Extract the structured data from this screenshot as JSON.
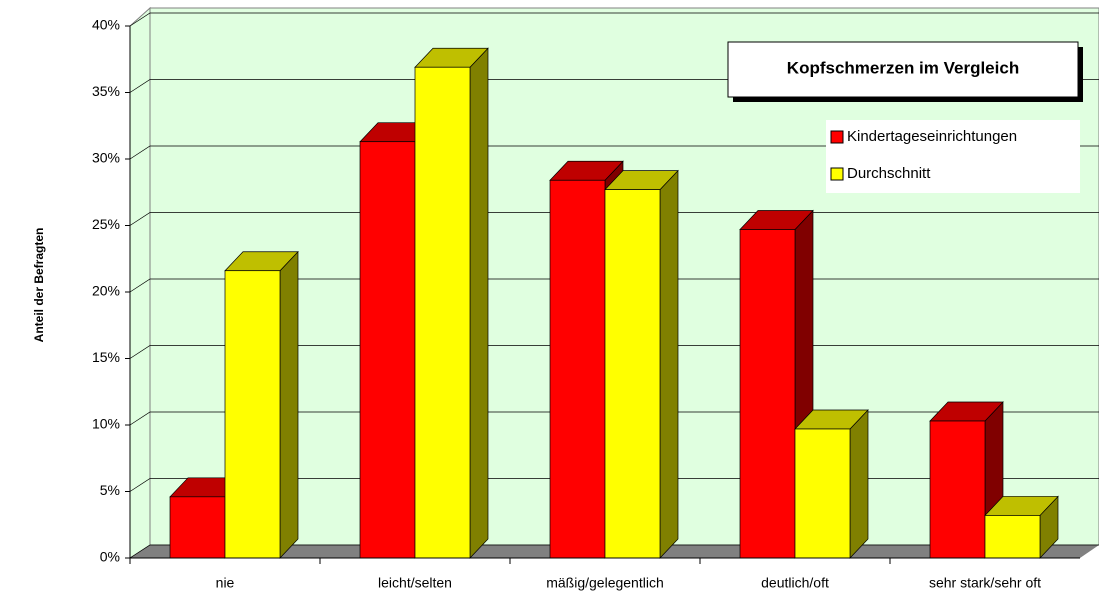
{
  "chart_data": {
    "type": "bar3d",
    "title": "Kopfschmerzen im Vergleich",
    "y_label": "Anteil der Befragten",
    "categories": [
      "nie",
      "leicht/selten",
      "mäßig/gelegentlich",
      "deutlich/oft",
      "sehr stark/sehr oft"
    ],
    "series": [
      {
        "name": "Kindertageseinrichtungen",
        "color": "#ff0000",
        "values": [
          4.6,
          31.3,
          28.4,
          24.7,
          10.3
        ]
      },
      {
        "name": "Durchschnitt",
        "color": "#ffff00",
        "values": [
          21.6,
          36.9,
          27.7,
          9.7,
          3.2
        ]
      }
    ],
    "ylim": [
      0,
      40
    ],
    "yticks": [
      {
        "value": 0,
        "label": "0%"
      },
      {
        "value": 5,
        "label": "5%"
      },
      {
        "value": 10,
        "label": "10%"
      },
      {
        "value": 15,
        "label": "15%"
      },
      {
        "value": 20,
        "label": "20%"
      },
      {
        "value": 25,
        "label": "25%"
      },
      {
        "value": 30,
        "label": "30%"
      },
      {
        "value": 35,
        "label": "35%"
      },
      {
        "value": 40,
        "label": "40%"
      }
    ],
    "grid": true
  }
}
